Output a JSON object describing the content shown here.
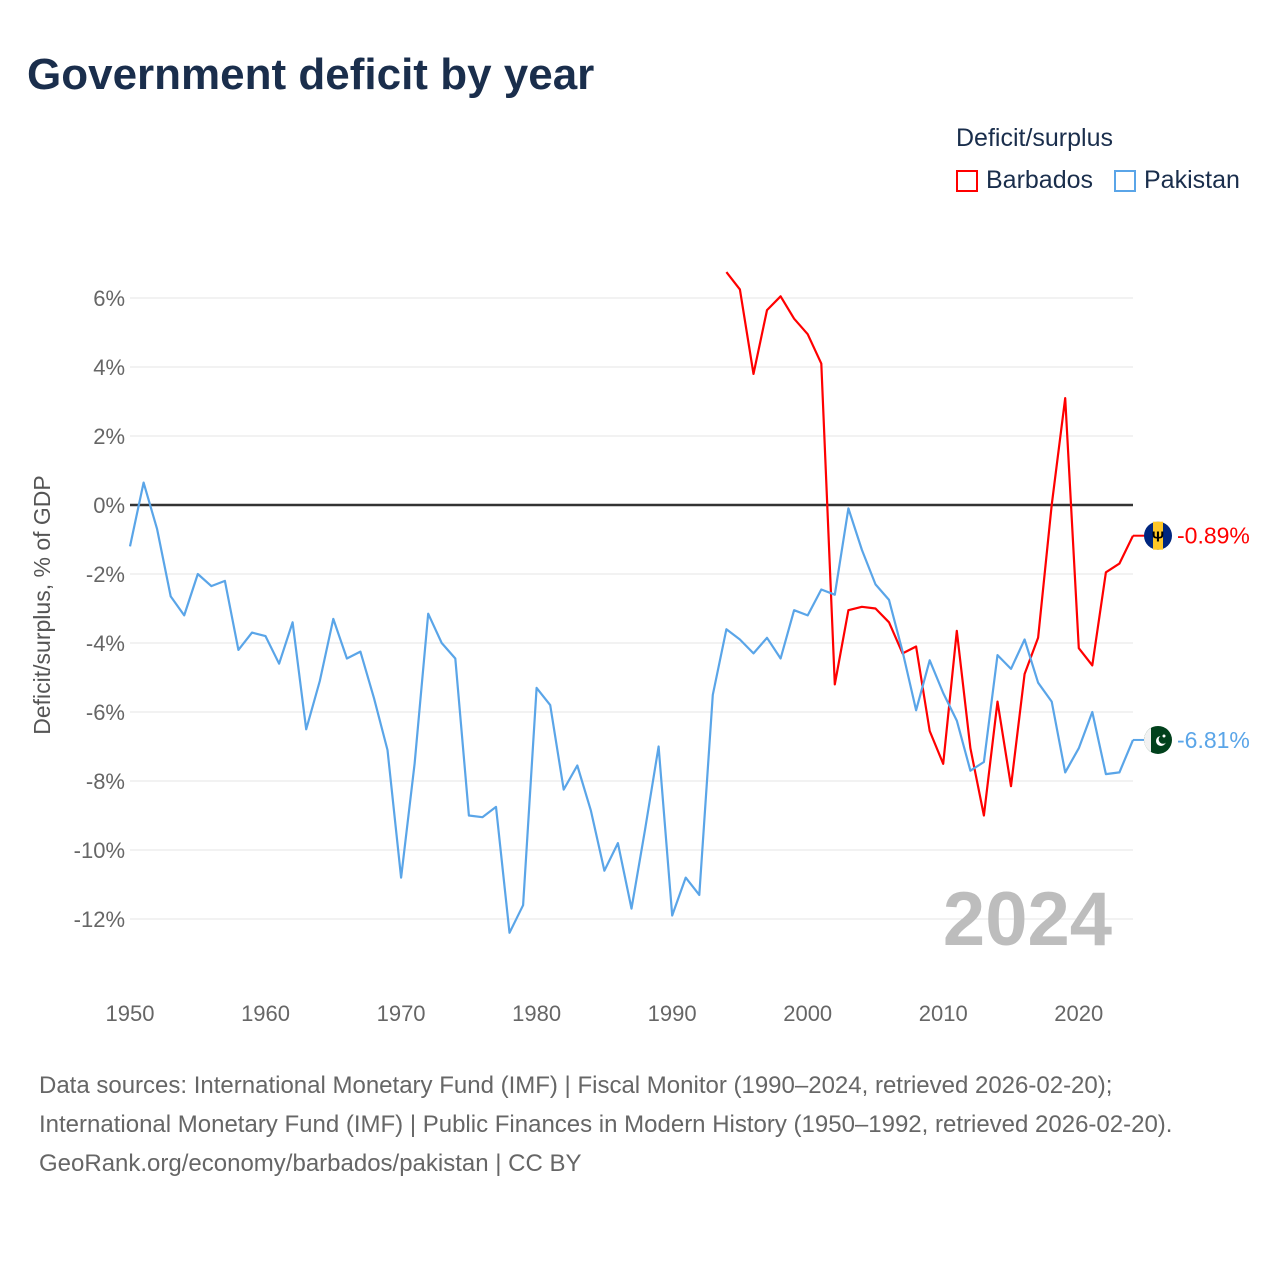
{
  "title": "Government deficit by year",
  "legend": {
    "title": "Deficit/surplus",
    "items": [
      {
        "name": "Barbados",
        "color": "#ff0000"
      },
      {
        "name": "Pakistan",
        "color": "#5aa5e8"
      }
    ]
  },
  "year_watermark": "2024",
  "footer": {
    "sources": "Data sources: International Monetary Fund (IMF) | Fiscal Monitor (1990–2024, retrieved 2026-02-20); International Monetary Fund (IMF) | Public Finances in Modern History (1950–1992, retrieved 2026-02-20).",
    "credit": "GeoRank.org/economy/barbados/pakistan | CC BY"
  },
  "chart_data": {
    "type": "line",
    "title": "Government deficit by year",
    "ylabel": "Deficit/surplus, % of GDP",
    "xlabel": "",
    "xlim": [
      1950,
      2024
    ],
    "ylim": [
      -13.8,
      7
    ],
    "grid": true,
    "legend_position": "top-right",
    "x_ticks": [
      1950,
      1960,
      1970,
      1980,
      1990,
      2000,
      2010,
      2020
    ],
    "y_ticks": [
      6,
      4,
      2,
      0,
      -2,
      -4,
      -6,
      -8,
      -10,
      -12
    ],
    "y_tick_labels": [
      "6%",
      "4%",
      "2%",
      "0%",
      "-2%",
      "-4%",
      "-6%",
      "-8%",
      "-10%",
      "-12%"
    ],
    "series": [
      {
        "name": "Barbados",
        "color": "#ff0000",
        "end_label": "-0.89%",
        "start_year": 1994,
        "values": [
          6.75,
          6.25,
          3.8,
          5.65,
          6.05,
          5.4,
          4.95,
          4.1,
          -5.2,
          -3.05,
          -2.95,
          -3.0,
          -3.4,
          -4.3,
          -4.1,
          -6.55,
          -7.5,
          -3.65,
          -7.05,
          -9.0,
          -5.7,
          -8.15,
          -4.9,
          -3.85,
          0.0,
          3.1,
          -4.15,
          -4.65,
          -1.95,
          -1.7,
          -0.89
        ]
      },
      {
        "name": "Pakistan",
        "color": "#5aa5e8",
        "end_label": "-6.81%",
        "start_year": 1950,
        "values": [
          -1.2,
          0.65,
          -0.7,
          -2.65,
          -3.2,
          -2.0,
          -2.35,
          -2.2,
          -4.2,
          -3.7,
          -3.8,
          -4.6,
          -3.4,
          -6.5,
          -5.1,
          -3.3,
          -4.45,
          -4.25,
          -5.6,
          -7.1,
          -10.8,
          -7.5,
          -3.15,
          -4.0,
          -4.45,
          -9.0,
          -9.05,
          -8.75,
          -12.4,
          -11.6,
          -5.3,
          -5.8,
          -8.25,
          -7.55,
          -8.85,
          -10.6,
          -9.8,
          -11.7,
          -9.4,
          -7.0,
          -11.9,
          -10.8,
          -11.3,
          -5.5,
          -3.6,
          -3.9,
          -4.3,
          -3.85,
          -4.45,
          -3.05,
          -3.2,
          -2.45,
          -2.6,
          -0.1,
          -1.3,
          -2.3,
          -2.75,
          -4.25,
          -5.95,
          -4.5,
          -5.45,
          -6.25,
          -7.7,
          -7.45,
          -4.35,
          -4.75,
          -3.9,
          -5.15,
          -5.7,
          -7.75,
          -7.05,
          -6.0,
          -7.8,
          -7.75,
          -6.81
        ]
      }
    ]
  }
}
